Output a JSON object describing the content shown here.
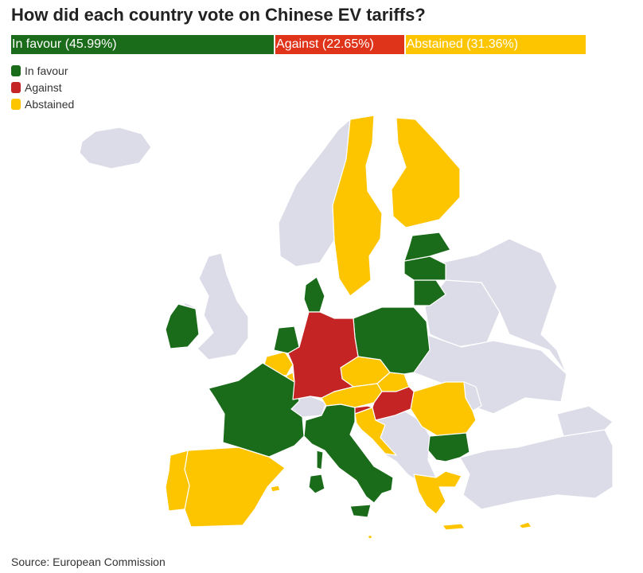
{
  "title": "How did each country vote on Chinese EV tariffs?",
  "colors": {
    "in_favour": "#1a6b1a",
    "against": "#c42424",
    "abstained": "#fdc500",
    "non_eu": "#dcdce8",
    "bar_against": "#e0341a"
  },
  "summary_bar": [
    {
      "key": "in_favour",
      "label": "In favour (45.99%)",
      "percent": 45.99
    },
    {
      "key": "against",
      "label": "Against (22.65%)",
      "percent": 22.65
    },
    {
      "key": "abstained",
      "label": "Abstained (31.36%)",
      "percent": 31.36
    }
  ],
  "legend": [
    {
      "key": "in_favour",
      "label": "In favour"
    },
    {
      "key": "against",
      "label": "Against"
    },
    {
      "key": "abstained",
      "label": "Abstained"
    }
  ],
  "votes": {
    "in_favour": [
      "Ireland",
      "France",
      "Netherlands",
      "Denmark",
      "Italy",
      "Poland",
      "Lithuania",
      "Latvia",
      "Estonia",
      "Bulgaria"
    ],
    "against": [
      "Germany",
      "Hungary",
      "Slovenia"
    ],
    "abstained": [
      "Sweden",
      "Finland",
      "Spain",
      "Portugal",
      "Belgium",
      "Luxembourg",
      "Czechia",
      "Slovakia",
      "Austria",
      "Croatia",
      "Romania",
      "Greece",
      "Cyprus",
      "Malta"
    ]
  },
  "source": "Source: European Commission"
}
